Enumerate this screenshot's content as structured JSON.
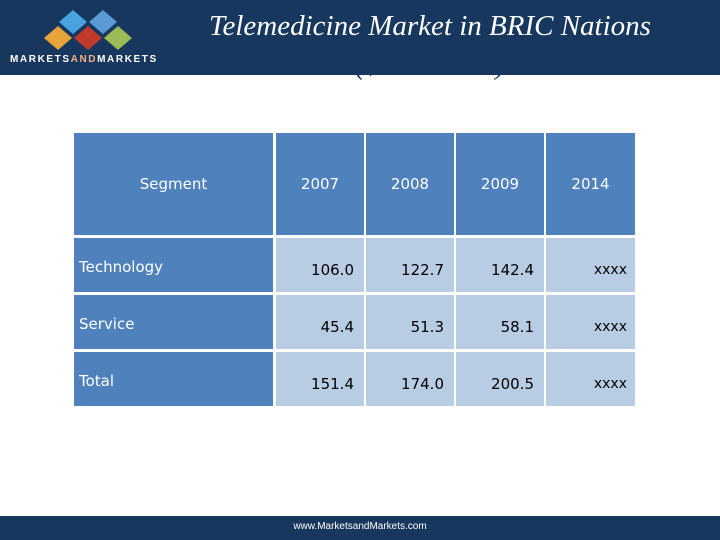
{
  "header": {
    "logo_text_left": "MARKETS",
    "logo_text_mid": "AND",
    "logo_text_right": "MARKETS",
    "title_line1": "Telemedicine Market in BRIC Nations",
    "title_line2": "($MILLION)"
  },
  "table": {
    "segment_label": "Segment",
    "years": [
      "2007",
      "2008",
      "2009",
      "2014"
    ],
    "rows": [
      {
        "label": "Technology",
        "values": [
          "106.0",
          "122.7",
          "142.4",
          "xxxx"
        ]
      },
      {
        "label": "Service",
        "values": [
          "45.4",
          "51.3",
          "58.1",
          "xxxx"
        ]
      },
      {
        "label": "Total",
        "values": [
          "151.4",
          "174.0",
          "200.5",
          "xxxx"
        ]
      }
    ]
  },
  "footer": {
    "url": "www.MarketsandMarkets.com"
  },
  "colors": {
    "header_bg": "#17375e",
    "header_cell": "#4f81bd",
    "value_cell": "#b8cce4",
    "logo_and": "#f4b183"
  },
  "icons": {
    "logo": "four-diamond-logo-mark"
  }
}
